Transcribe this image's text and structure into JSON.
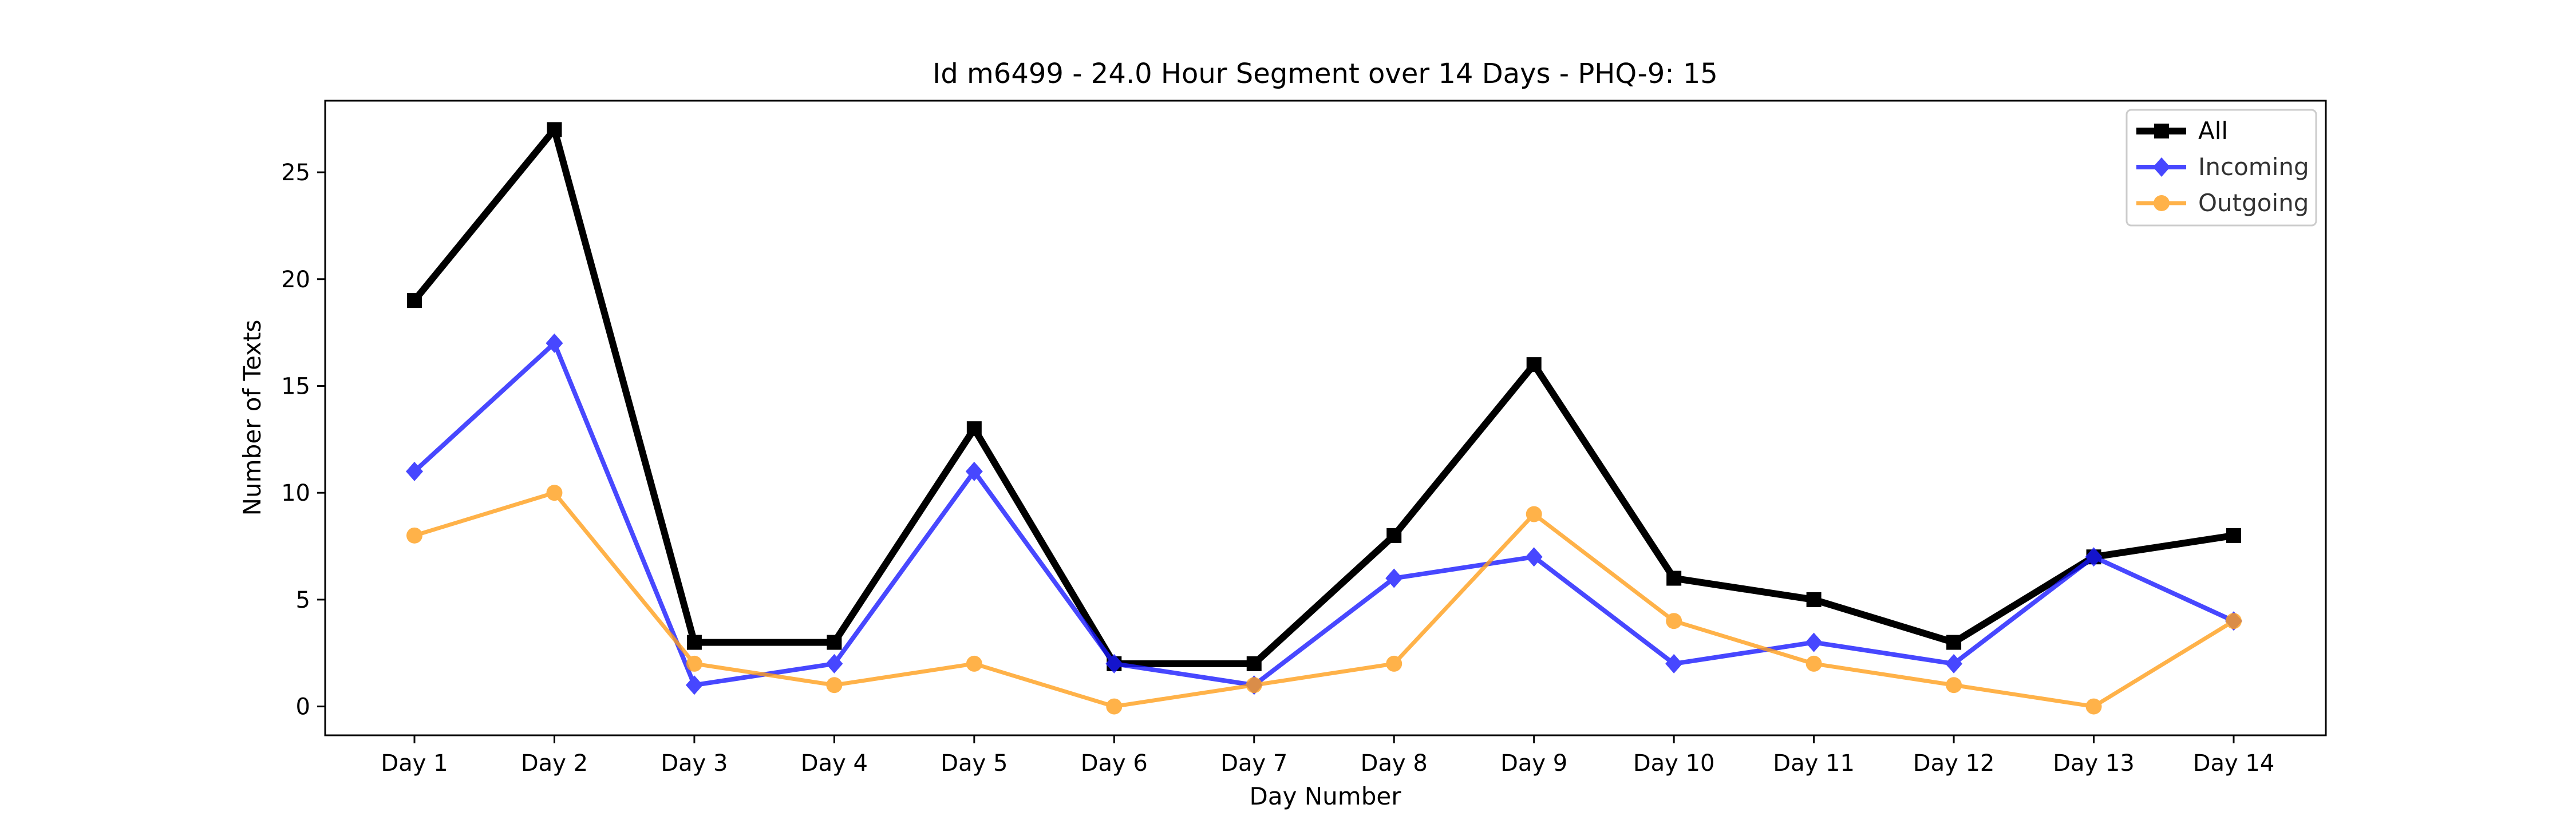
{
  "chart_data": {
    "type": "line",
    "title": "Id m6499 - 24.0 Hour Segment over 14 Days - PHQ-9: 15",
    "xlabel": "Day Number",
    "ylabel": "Number of Texts",
    "categories": [
      "Day 1",
      "Day 2",
      "Day 3",
      "Day 4",
      "Day 5",
      "Day 6",
      "Day 7",
      "Day 8",
      "Day 9",
      "Day 10",
      "Day 11",
      "Day 12",
      "Day 13",
      "Day 14"
    ],
    "yticks": [
      0,
      5,
      10,
      15,
      20,
      25
    ],
    "ylim": [
      -1.35,
      28.35
    ],
    "grid": false,
    "legend_position": "top-right",
    "series": [
      {
        "name": "All",
        "color": "#000000",
        "marker": "square",
        "values": [
          19,
          27,
          3,
          3,
          13,
          2,
          2,
          8,
          16,
          6,
          5,
          3,
          7,
          8
        ]
      },
      {
        "name": "Incoming",
        "color": "#1a1aff",
        "marker": "diamond",
        "values": [
          11,
          17,
          1,
          2,
          11,
          2,
          1,
          6,
          7,
          2,
          3,
          2,
          7,
          4
        ]
      },
      {
        "name": "Outgoing",
        "color": "#ff9f1c",
        "marker": "circle",
        "values": [
          8,
          10,
          2,
          1,
          2,
          0,
          1,
          2,
          9,
          4,
          2,
          1,
          0,
          4
        ]
      }
    ]
  }
}
